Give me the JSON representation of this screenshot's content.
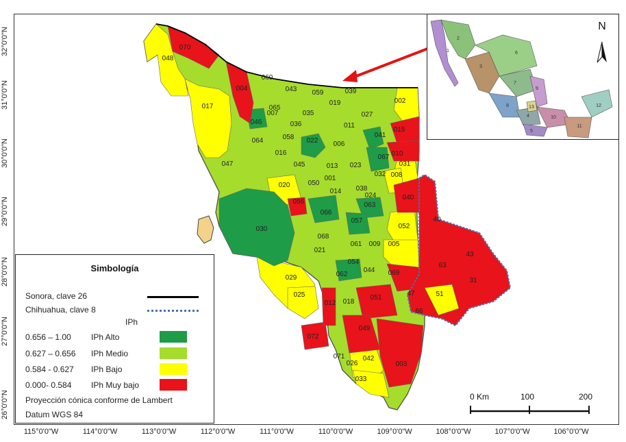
{
  "colors": {
    "alto": "#1e9c47",
    "medio": "#a6dc2c",
    "bajo": "#ffff00",
    "muy_bajo": "#e8131b",
    "sonora_boundary": "#000000",
    "chihuahua_boundary": "#4a6fa8",
    "arrow": "#e31414"
  },
  "axes": {
    "x_ticks": [
      "115°0'0\"W",
      "114°0'0\"W",
      "113°0'0\"W",
      "112°0'0\"W",
      "111°0'0\"W",
      "110°0'0\"W",
      "109°0'0\"W",
      "108°0'0\"W",
      "107°0'0\"W",
      "106°0'0\"W"
    ],
    "y_ticks": [
      "32°0'0\"N",
      "31°0'0\"N",
      "30°0'0\"N",
      "29°0'0\"N",
      "28°0'0\"N",
      "27°0'0\"N",
      "26°0'0\"N"
    ]
  },
  "legend": {
    "title": "Simbología",
    "sonora": "Sonora, clave 26",
    "chihuahua": "Chihuahua, clave 8",
    "iph_header": "IPh",
    "classes": [
      {
        "range": "0.656 – 1.00",
        "label": "IPh Alto",
        "color": "#1e9c47"
      },
      {
        "range": "0.627 – 0.656",
        "label": "IPh Medio",
        "color": "#a6dc2c"
      },
      {
        "range": "0.584 - 0.627",
        "label": "IPh Bajo",
        "color": "#ffff00"
      },
      {
        "range": "0.000- 0.584",
        "label": "IPh Muy bajo",
        "color": "#e8131b"
      }
    ],
    "projection": "Proyección cónica conforme de Lambert",
    "datum": "Datum WGS 84"
  },
  "scale": {
    "labels": [
      "0 Km",
      "100",
      "200"
    ]
  },
  "north": "N",
  "inset_regions": [
    "1",
    "2",
    "3",
    "4",
    "5",
    "6",
    "7",
    "8",
    "9",
    "10",
    "11",
    "12",
    "13"
  ],
  "municipalities": {
    "muy_bajo": [
      "070",
      "004",
      "015",
      "010",
      "040",
      "069",
      "051",
      "049",
      "003",
      "072",
      "012",
      "056"
    ],
    "bajo": [
      "048",
      "017",
      "002",
      "031",
      "052",
      "005",
      "029",
      "025",
      "042",
      "026",
      "033",
      "008",
      "071"
    ],
    "medio": [
      "060",
      "043",
      "059",
      "039",
      "019",
      "027",
      "011",
      "035",
      "058",
      "064",
      "016",
      "045",
      "020",
      "050",
      "006",
      "023",
      "038",
      "014",
      "047",
      "021",
      "061",
      "018",
      "044",
      "062",
      "009",
      "065",
      "036",
      "001",
      "024",
      "032",
      "013"
    ],
    "alto": [
      "046",
      "022",
      "041",
      "067",
      "063",
      "057",
      "066",
      "030",
      "068",
      "054",
      "007"
    ],
    "chihuahua": [
      "40",
      "63",
      "43",
      "31",
      "47",
      "51",
      "66"
    ]
  }
}
